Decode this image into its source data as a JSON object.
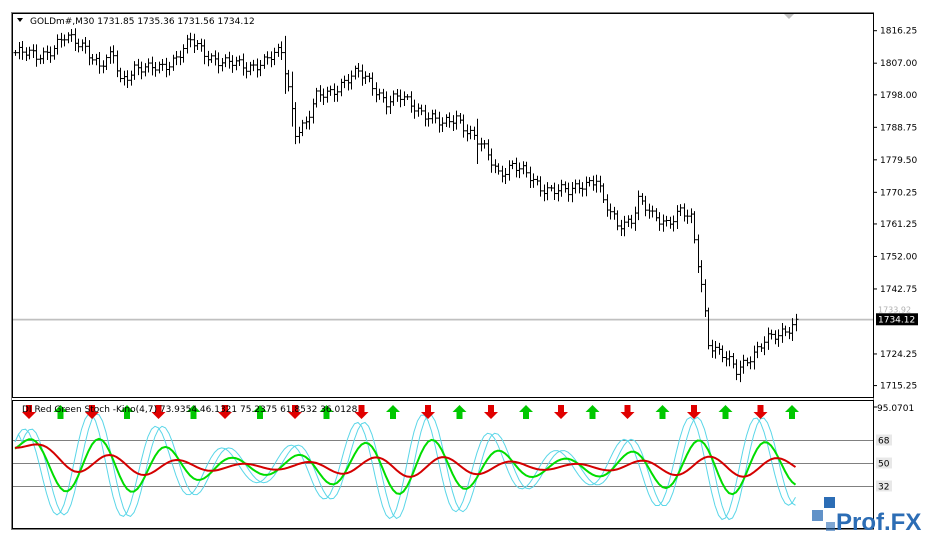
{
  "colors": {
    "background": "#ffffff",
    "bar": "#000000",
    "grid": "#c0c0c0",
    "bid_line": "#c0c0c0",
    "price_box": "#000000",
    "green_line": "#00dd00",
    "red_line": "#d40000",
    "stoch_line": "#5ad6e8",
    "arrow_up": "#00c800",
    "arrow_down": "#e00000",
    "level_line": "#808080",
    "watermark": "#2c6db5"
  },
  "main_chart": {
    "symbol_label": "GOLDm#,M30  1731.85 1735.36 1731.56 1734.12",
    "y_ticks": [
      "1816.25",
      "1807.00",
      "1798.00",
      "1788.75",
      "1779.50",
      "1770.25",
      "1761.25",
      "1752.00",
      "1742.75",
      "1724.25",
      "1715.25"
    ],
    "y_tick_values": [
      1816.25,
      1807.0,
      1798.0,
      1788.75,
      1779.5,
      1770.25,
      1761.25,
      1752.0,
      1742.75,
      1724.25,
      1715.25
    ],
    "current_price": "1734.12",
    "current_price_value": 1734.12,
    "secondary_price": "1733.92",
    "secondary_price_value": 1733.92,
    "y_min": 1712,
    "y_max": 1821
  },
  "indicator": {
    "label": "DI Red Green Stoch -Kino(4,7) 73.9354 46.1321 75.2375 61.8532 36.0128",
    "top_value": "95.0701",
    "levels": [
      "68",
      "50",
      "32"
    ],
    "level_values": [
      68,
      50,
      32
    ],
    "y_min": 0,
    "y_max": 95
  },
  "watermark": {
    "text": "Prof.FX"
  }
}
